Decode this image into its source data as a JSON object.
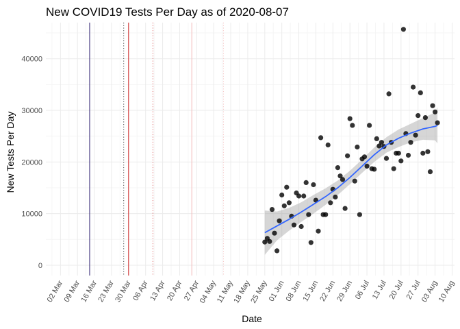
{
  "chart_data": {
    "type": "scatter",
    "title": "New COVID19 Tests Per Day as of 2020-08-07",
    "xlabel": "Date",
    "ylabel": "New Tests Per Day",
    "x_range": [
      "2020-02-25",
      "2020-08-11"
    ],
    "y_range": [
      -2000,
      47000
    ],
    "x_ticks": [
      "2020-03-02",
      "2020-03-09",
      "2020-03-16",
      "2020-03-23",
      "2020-03-30",
      "2020-04-06",
      "2020-04-13",
      "2020-04-20",
      "2020-04-27",
      "2020-05-04",
      "2020-05-11",
      "2020-05-18",
      "2020-05-25",
      "2020-06-01",
      "2020-06-08",
      "2020-06-15",
      "2020-06-22",
      "2020-06-29",
      "2020-07-06",
      "2020-07-13",
      "2020-07-20",
      "2020-07-27",
      "2020-08-03",
      "2020-08-10"
    ],
    "x_tick_labels": [
      "02 Mar",
      "09 Mar",
      "16 Mar",
      "23 Mar",
      "30 Mar",
      "06 Apr",
      "13 Apr",
      "20 Apr",
      "27 Apr",
      "04 May",
      "11 May",
      "18 May",
      "25 May",
      "01 Jun",
      "08 Jun",
      "15 Jun",
      "22 Jun",
      "29 Jun",
      "06 Jul",
      "13 Jul",
      "20 Jul",
      "27 Jul",
      "03 Aug",
      "10 Aug"
    ],
    "y_ticks": [
      0,
      10000,
      20000,
      30000,
      40000
    ],
    "y_tick_labels": [
      "0",
      "10000",
      "20000",
      "30000",
      "40000"
    ],
    "grid": true,
    "legend": "none",
    "vlines": [
      {
        "date": "2020-03-14",
        "color": "#2b1d6e",
        "style": "solid"
      },
      {
        "date": "2020-03-28",
        "color": "#444444",
        "style": "dotted"
      },
      {
        "date": "2020-03-30",
        "color": "#cc1f1f",
        "style": "solid"
      },
      {
        "date": "2020-04-09",
        "color": "#e06a6a",
        "style": "dotted"
      },
      {
        "date": "2020-04-25",
        "color": "#f2b8b8",
        "style": "solid"
      },
      {
        "date": "2020-05-08",
        "color": "#f5c6c6",
        "style": "dotted"
      }
    ],
    "points": [
      [
        "2020-05-25",
        4500
      ],
      [
        "2020-05-26",
        5200
      ],
      [
        "2020-05-27",
        4600
      ],
      [
        "2020-05-28",
        10800
      ],
      [
        "2020-05-29",
        6200
      ],
      [
        "2020-05-30",
        2800
      ],
      [
        "2020-05-31",
        8600
      ],
      [
        "2020-06-01",
        13600
      ],
      [
        "2020-06-02",
        11500
      ],
      [
        "2020-06-03",
        15100
      ],
      [
        "2020-06-04",
        12100
      ],
      [
        "2020-06-05",
        9500
      ],
      [
        "2020-06-06",
        7800
      ],
      [
        "2020-06-07",
        14000
      ],
      [
        "2020-06-08",
        13400
      ],
      [
        "2020-06-09",
        7500
      ],
      [
        "2020-06-10",
        13400
      ],
      [
        "2020-06-11",
        16000
      ],
      [
        "2020-06-12",
        9800
      ],
      [
        "2020-06-13",
        4400
      ],
      [
        "2020-06-14",
        15600
      ],
      [
        "2020-06-15",
        12600
      ],
      [
        "2020-06-16",
        6600
      ],
      [
        "2020-06-17",
        24700
      ],
      [
        "2020-06-18",
        9800
      ],
      [
        "2020-06-19",
        9800
      ],
      [
        "2020-06-20",
        23300
      ],
      [
        "2020-06-21",
        12100
      ],
      [
        "2020-06-22",
        14700
      ],
      [
        "2020-06-23",
        13200
      ],
      [
        "2020-06-24",
        18900
      ],
      [
        "2020-06-25",
        17300
      ],
      [
        "2020-06-26",
        16600
      ],
      [
        "2020-06-27",
        11000
      ],
      [
        "2020-06-28",
        21200
      ],
      [
        "2020-06-29",
        28400
      ],
      [
        "2020-06-30",
        27100
      ],
      [
        "2020-07-01",
        16300
      ],
      [
        "2020-07-02",
        22900
      ],
      [
        "2020-07-03",
        9800
      ],
      [
        "2020-07-04",
        20600
      ],
      [
        "2020-07-05",
        21000
      ],
      [
        "2020-07-06",
        19200
      ],
      [
        "2020-07-07",
        27100
      ],
      [
        "2020-07-08",
        18700
      ],
      [
        "2020-07-09",
        18600
      ],
      [
        "2020-07-10",
        24500
      ],
      [
        "2020-07-11",
        23100
      ],
      [
        "2020-07-12",
        23800
      ],
      [
        "2020-07-13",
        23000
      ],
      [
        "2020-07-14",
        20700
      ],
      [
        "2020-07-15",
        33200
      ],
      [
        "2020-07-16",
        23800
      ],
      [
        "2020-07-17",
        18700
      ],
      [
        "2020-07-18",
        21700
      ],
      [
        "2020-07-19",
        21700
      ],
      [
        "2020-07-20",
        20200
      ],
      [
        "2020-07-21",
        45700
      ],
      [
        "2020-07-22",
        25500
      ],
      [
        "2020-07-23",
        21300
      ],
      [
        "2020-07-24",
        23800
      ],
      [
        "2020-07-25",
        34500
      ],
      [
        "2020-07-26",
        25200
      ],
      [
        "2020-07-27",
        29000
      ],
      [
        "2020-07-28",
        33400
      ],
      [
        "2020-07-29",
        21700
      ],
      [
        "2020-07-30",
        28600
      ],
      [
        "2020-07-31",
        22000
      ],
      [
        "2020-08-01",
        18100
      ],
      [
        "2020-08-02",
        30900
      ],
      [
        "2020-08-03",
        29700
      ],
      [
        "2020-08-04",
        27600
      ]
    ],
    "smooth": [
      [
        "2020-05-25",
        6300,
        2000,
        10600
      ],
      [
        "2020-05-30",
        7600,
        4800,
        10400
      ],
      [
        "2020-06-04",
        8900,
        6700,
        11100
      ],
      [
        "2020-06-09",
        10300,
        8400,
        12200
      ],
      [
        "2020-06-14",
        11800,
        10000,
        13600
      ],
      [
        "2020-06-19",
        13300,
        11700,
        14900
      ],
      [
        "2020-06-24",
        15000,
        13600,
        16400
      ],
      [
        "2020-06-29",
        17000,
        15700,
        18300
      ],
      [
        "2020-07-04",
        19200,
        17900,
        20500
      ],
      [
        "2020-07-09",
        21400,
        20000,
        22800
      ],
      [
        "2020-07-14",
        23300,
        21800,
        24800
      ],
      [
        "2020-07-19",
        24600,
        22900,
        26300
      ],
      [
        "2020-07-24",
        25600,
        23800,
        27400
      ],
      [
        "2020-07-29",
        26400,
        24300,
        28500
      ],
      [
        "2020-08-03",
        26900,
        24200,
        29600
      ],
      [
        "2020-08-04",
        27100,
        23600,
        30600
      ]
    ],
    "colors": {
      "point": "#000000",
      "point_alpha": 0.8,
      "smooth_line": "#3366ff",
      "ribbon": "#999999",
      "grid_major": "#ebebeb",
      "grid_minor": "#f5f5f5"
    }
  }
}
